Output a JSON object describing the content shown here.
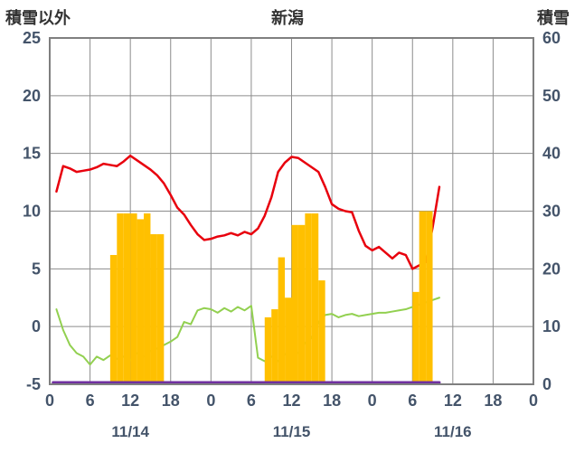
{
  "chart_data": {
    "type": "combo",
    "title": "新潟",
    "left_axis": {
      "title": "積雪以外",
      "min": -5,
      "max": 25,
      "ticks": [
        25,
        20,
        15,
        10,
        5,
        0,
        -5
      ]
    },
    "right_axis": {
      "title": "積雪",
      "min": 0,
      "max": 60,
      "ticks": [
        60,
        50,
        40,
        30,
        20,
        10,
        0
      ]
    },
    "x_axis": {
      "min": 0,
      "max": 72,
      "tick_step": 6,
      "tick_labels": [
        "0",
        "6",
        "12",
        "18",
        "0",
        "6",
        "12",
        "18",
        "0",
        "6",
        "12",
        "18",
        "0"
      ],
      "date_labels": [
        {
          "label": "11/14",
          "hour": 12
        },
        {
          "label": "11/15",
          "hour": 36
        },
        {
          "label": "11/16",
          "hour": 60
        }
      ]
    },
    "grid": true,
    "legend": "none",
    "colors": {
      "temperature": "#e8000d",
      "green_series": "#92d050",
      "precip_bars": "#ffc000",
      "snow_depth": "#7030a0",
      "grid": "#8c8c8c",
      "border": "#7f7f7f",
      "tick_text": "#44546a",
      "title_text": "#333333"
    },
    "series": [
      {
        "name": "temperature-line",
        "kind": "line",
        "axis": "left",
        "color_key": "temperature",
        "width": 2.5,
        "points": [
          [
            1,
            11.7
          ],
          [
            2,
            13.9
          ],
          [
            3,
            13.7
          ],
          [
            4,
            13.4
          ],
          [
            5,
            13.5
          ],
          [
            6,
            13.6
          ],
          [
            7,
            13.8
          ],
          [
            8,
            14.1
          ],
          [
            9,
            14.0
          ],
          [
            10,
            13.9
          ],
          [
            11,
            14.3
          ],
          [
            12,
            14.8
          ],
          [
            13,
            14.4
          ],
          [
            14,
            14.0
          ],
          [
            15,
            13.6
          ],
          [
            16,
            13.1
          ],
          [
            17,
            12.4
          ],
          [
            18,
            11.4
          ],
          [
            19,
            10.3
          ],
          [
            20,
            9.7
          ],
          [
            21,
            8.8
          ],
          [
            22,
            8.0
          ],
          [
            23,
            7.5
          ],
          [
            24,
            7.6
          ],
          [
            25,
            7.8
          ],
          [
            26,
            7.9
          ],
          [
            27,
            8.1
          ],
          [
            28,
            7.9
          ],
          [
            29,
            8.2
          ],
          [
            30,
            8.0
          ],
          [
            31,
            8.5
          ],
          [
            32,
            9.6
          ],
          [
            33,
            11.2
          ],
          [
            34,
            13.4
          ],
          [
            35,
            14.2
          ],
          [
            36,
            14.7
          ],
          [
            37,
            14.6
          ],
          [
            38,
            14.2
          ],
          [
            39,
            13.8
          ],
          [
            40,
            13.4
          ],
          [
            41,
            12.1
          ],
          [
            42,
            10.6
          ],
          [
            43,
            10.2
          ],
          [
            44,
            10.0
          ],
          [
            45,
            9.9
          ],
          [
            46,
            8.3
          ],
          [
            47,
            7.0
          ],
          [
            48,
            6.6
          ],
          [
            49,
            6.9
          ],
          [
            50,
            6.4
          ],
          [
            51,
            5.9
          ],
          [
            52,
            6.4
          ],
          [
            53,
            6.2
          ],
          [
            54,
            5.0
          ],
          [
            55,
            5.3
          ],
          [
            56,
            5.6
          ],
          [
            57,
            8.6
          ],
          [
            58,
            12.1
          ]
        ]
      },
      {
        "name": "green-line",
        "kind": "line",
        "axis": "left",
        "color_key": "green_series",
        "width": 2,
        "points": [
          [
            1,
            1.5
          ],
          [
            2,
            -0.3
          ],
          [
            3,
            -1.6
          ],
          [
            4,
            -2.3
          ],
          [
            5,
            -2.6
          ],
          [
            6,
            -3.3
          ],
          [
            7,
            -2.6
          ],
          [
            8,
            -2.9
          ],
          [
            9,
            -2.5
          ],
          [
            10,
            -2.8
          ],
          [
            11,
            -2.6
          ],
          [
            12,
            -2.9
          ],
          [
            13,
            -2.3
          ],
          [
            14,
            -2.6
          ],
          [
            15,
            -2.1
          ],
          [
            16,
            -1.9
          ],
          [
            17,
            -1.6
          ],
          [
            18,
            -1.3
          ],
          [
            19,
            -0.9
          ],
          [
            20,
            0.4
          ],
          [
            21,
            0.2
          ],
          [
            22,
            1.4
          ],
          [
            23,
            1.6
          ],
          [
            24,
            1.5
          ],
          [
            25,
            1.2
          ],
          [
            26,
            1.6
          ],
          [
            27,
            1.3
          ],
          [
            28,
            1.7
          ],
          [
            29,
            1.4
          ],
          [
            30,
            1.8
          ],
          [
            31,
            -2.7
          ],
          [
            32,
            -3.0
          ],
          [
            33,
            -2.6
          ],
          [
            34,
            -3.0
          ],
          [
            35,
            -2.4
          ],
          [
            36,
            -2.1
          ],
          [
            37,
            -2.3
          ],
          [
            38,
            -1.4
          ],
          [
            39,
            -1.0
          ],
          [
            40,
            0.4
          ],
          [
            41,
            1.0
          ],
          [
            42,
            1.1
          ],
          [
            43,
            0.8
          ],
          [
            44,
            1.0
          ],
          [
            45,
            1.1
          ],
          [
            46,
            0.9
          ],
          [
            47,
            1.0
          ],
          [
            48,
            1.1
          ],
          [
            49,
            1.2
          ],
          [
            50,
            1.2
          ],
          [
            51,
            1.3
          ],
          [
            52,
            1.4
          ],
          [
            53,
            1.5
          ],
          [
            54,
            1.7
          ],
          [
            55,
            1.9
          ],
          [
            56,
            2.1
          ],
          [
            57,
            2.3
          ],
          [
            58,
            2.5
          ]
        ]
      },
      {
        "name": "precipitation-bars",
        "kind": "bar",
        "axis": "left",
        "color_key": "precip_bars",
        "points": [
          [
            9,
            6.2
          ],
          [
            10,
            9.8
          ],
          [
            11,
            9.8
          ],
          [
            12,
            9.8
          ],
          [
            13,
            9.3
          ],
          [
            14,
            9.8
          ],
          [
            15,
            8.0
          ],
          [
            16,
            8.0
          ],
          [
            32,
            0.8
          ],
          [
            33,
            1.5
          ],
          [
            34,
            6.0
          ],
          [
            35,
            2.5
          ],
          [
            36,
            8.8
          ],
          [
            37,
            8.8
          ],
          [
            38,
            9.8
          ],
          [
            39,
            9.8
          ],
          [
            40,
            4.0
          ],
          [
            54,
            3.0
          ],
          [
            55,
            10.0
          ],
          [
            56,
            10.0
          ]
        ]
      },
      {
        "name": "snow-depth-line",
        "kind": "line",
        "axis": "right",
        "color_key": "snow_depth",
        "width": 3,
        "y_offset": -2,
        "points": [
          [
            0.5,
            0
          ],
          [
            58,
            0
          ]
        ]
      }
    ]
  }
}
